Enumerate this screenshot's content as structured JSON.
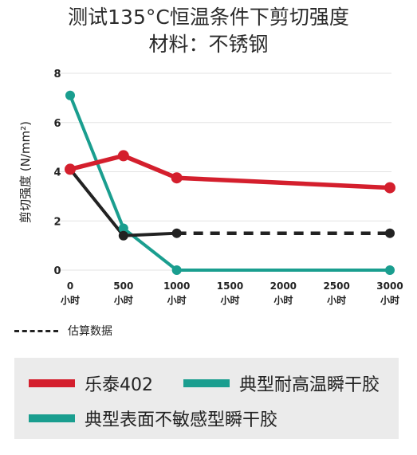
{
  "chart_data": {
    "type": "line",
    "title": "测试135°C恒温条件下剪切强度",
    "subtitle": "材料：不锈钢",
    "ylabel": "剪切强度 (N/mm²)",
    "xlabel": "",
    "ylim": [
      0,
      8
    ],
    "yticks": [
      "0",
      "2",
      "4",
      "6",
      "8"
    ],
    "x": [
      0,
      500,
      1000,
      1500,
      2000,
      2500,
      3000
    ],
    "xtick_values": [
      "0",
      "500",
      "1000",
      "1500",
      "2000",
      "2500",
      "3000"
    ],
    "xtick_unit": "小时",
    "grid": true,
    "series": [
      {
        "name": "乐泰402",
        "color": "#d41f2d",
        "points": [
          [
            0,
            4.1
          ],
          [
            500,
            4.65
          ],
          [
            1000,
            3.75
          ],
          [
            3000,
            3.35
          ]
        ]
      },
      {
        "name": "典型耐高温瞬干胶",
        "color": "#1a9e8f",
        "points": [
          [
            0,
            7.1
          ],
          [
            500,
            1.7
          ],
          [
            1000,
            0
          ],
          [
            3000,
            0
          ]
        ]
      },
      {
        "name": "典型表面不敏感型瞬干胶",
        "color": "#1a9e8f",
        "points": [
          [
            0,
            4.1
          ],
          [
            500,
            1.4
          ],
          [
            1000,
            1.5
          ]
        ]
      }
    ],
    "estimated": {
      "label": "估算数据",
      "color": "#222222",
      "points": [
        [
          1000,
          1.5
        ],
        [
          3000,
          1.5
        ]
      ]
    },
    "legend_position": "bottom"
  }
}
